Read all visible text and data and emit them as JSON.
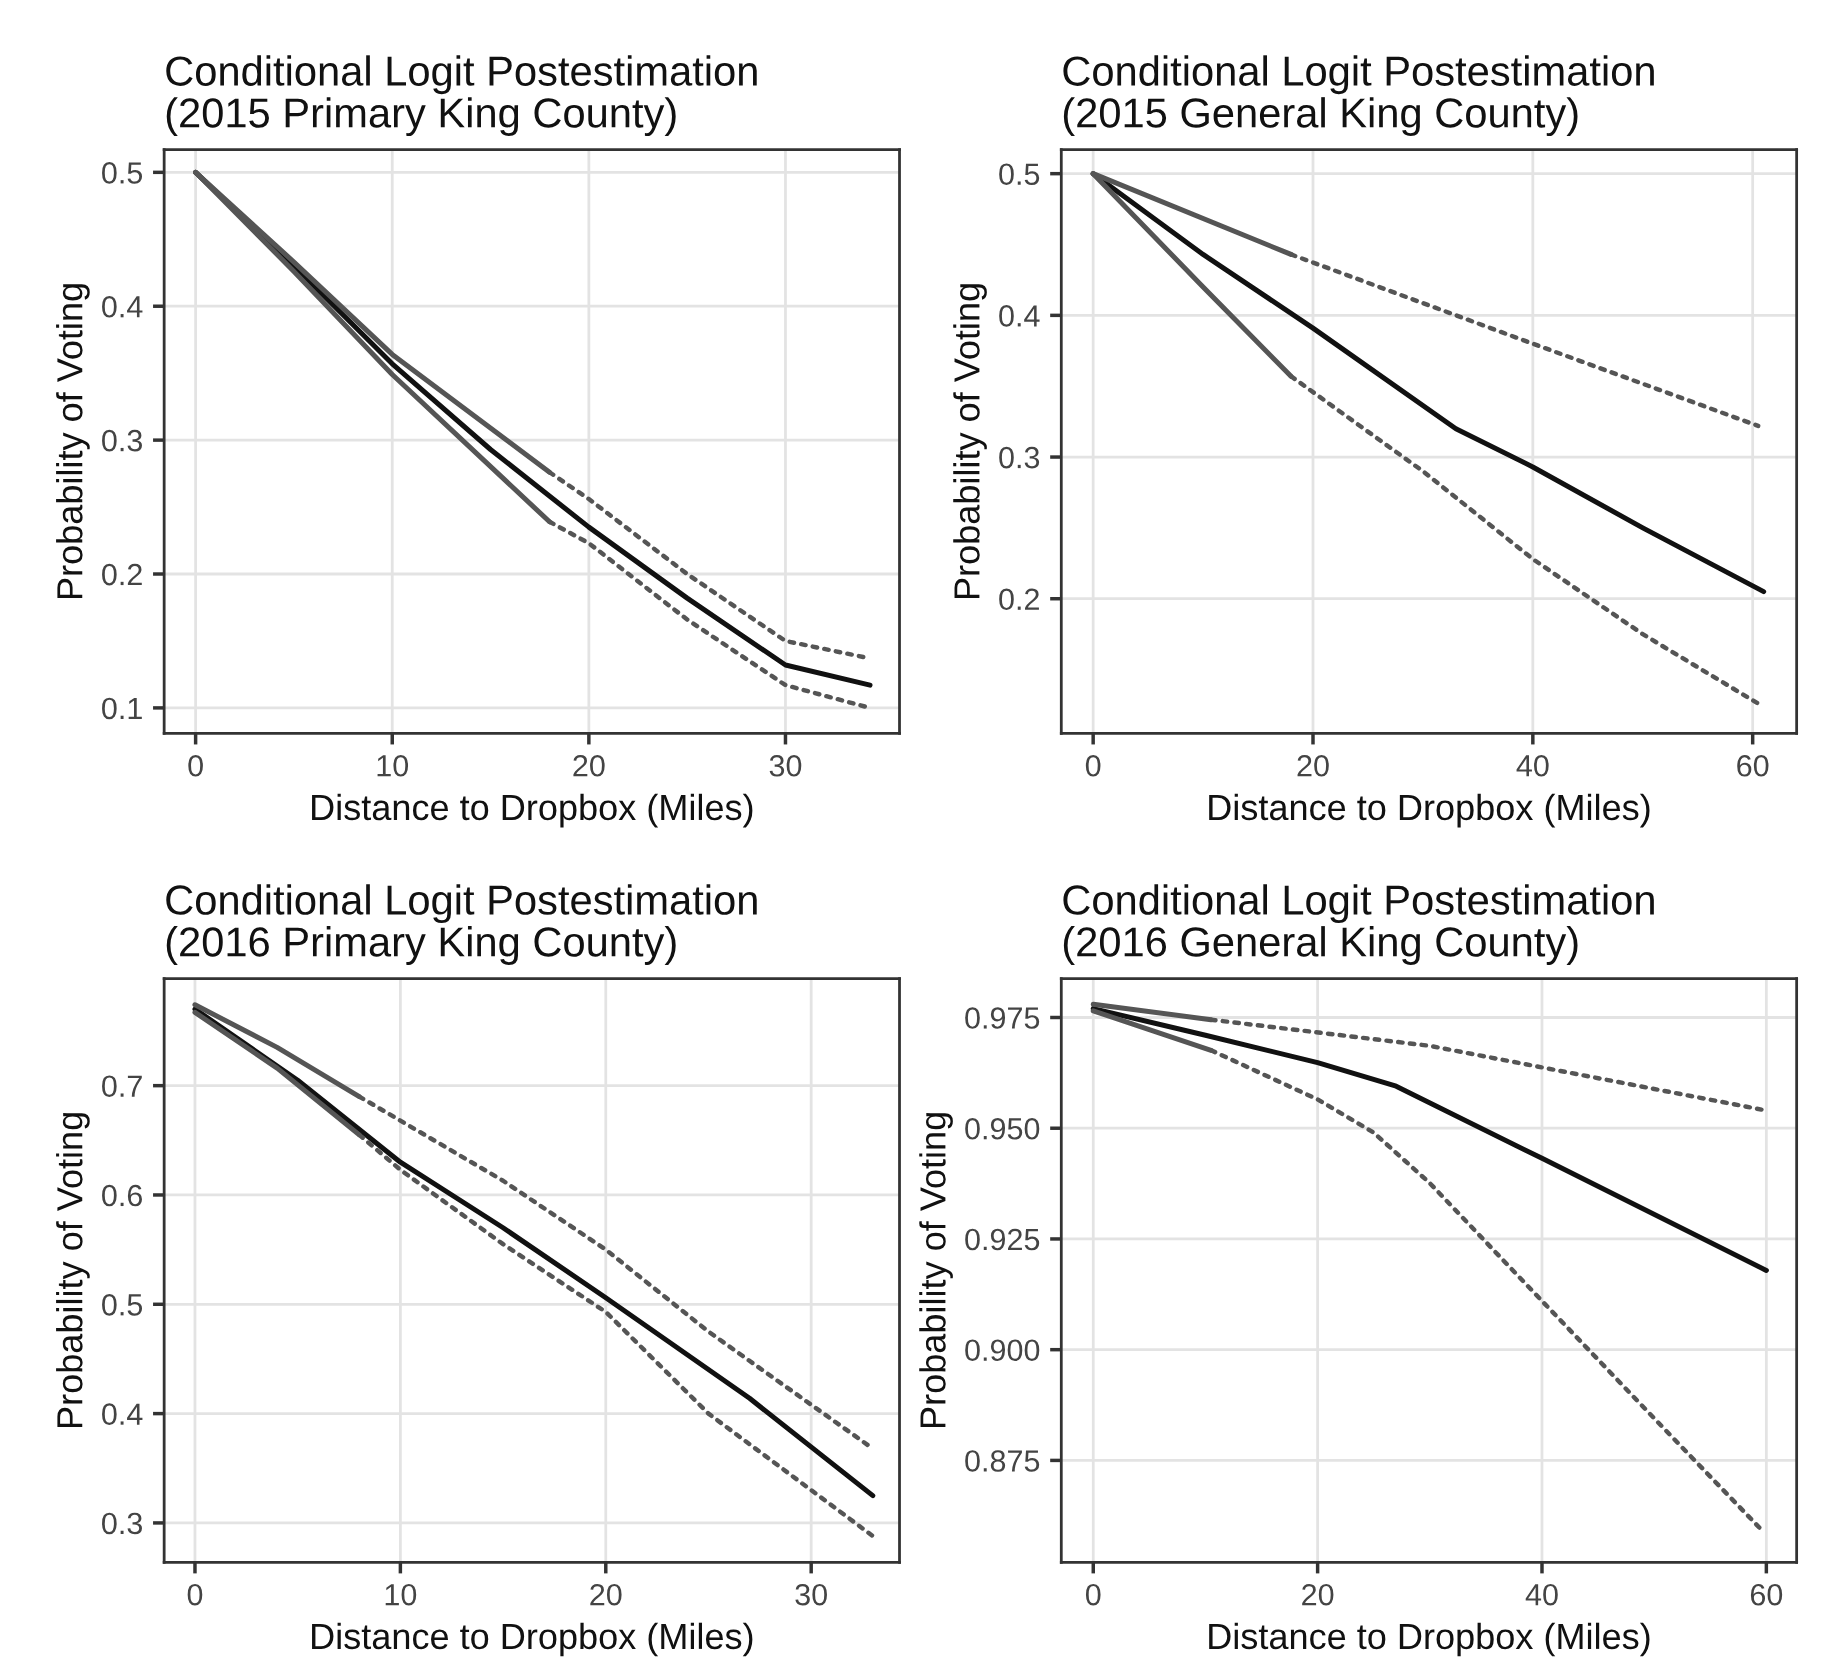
{
  "chart_data": [
    {
      "type": "line",
      "title": "Conditional Logit Postestimation\n(2015 Primary King County)",
      "xlabel": "Distance to Dropbox (Miles)",
      "ylabel": "Probability of Voting",
      "xlim": [
        -1.6,
        35.8
      ],
      "ylim": [
        0.081,
        0.517
      ],
      "xticks": [
        0,
        10,
        20,
        30
      ],
      "yticks": [
        0.1,
        0.2,
        0.3,
        0.4,
        0.5
      ],
      "grid": true,
      "legend": false,
      "series": [
        {
          "color": "#111111",
          "line_style": "solid",
          "x": [
            0,
            5,
            10,
            15,
            20,
            25,
            30,
            34.3
          ],
          "values": [
            0.5,
            0.43,
            0.357,
            0.293,
            0.235,
            0.182,
            0.132,
            0.117
          ]
        },
        {
          "color": "#555555",
          "line_style": "solid",
          "x": [
            0,
            5,
            10,
            18
          ],
          "values": [
            0.5,
            0.433,
            0.364,
            0.276
          ]
        },
        {
          "color": "#555555",
          "line_style": "dotted",
          "x": [
            18,
            20,
            25,
            30,
            34.3
          ],
          "values": [
            0.276,
            0.256,
            0.2,
            0.15,
            0.137
          ]
        },
        {
          "color": "#555555",
          "line_style": "solid",
          "x": [
            0,
            5,
            10,
            18
          ],
          "values": [
            0.5,
            0.426,
            0.349,
            0.239
          ]
        },
        {
          "color": "#555555",
          "line_style": "dotted",
          "x": [
            18,
            20,
            25,
            30,
            34.3
          ],
          "values": [
            0.239,
            0.223,
            0.166,
            0.117,
            0.1
          ]
        }
      ]
    },
    {
      "type": "line",
      "title": "Conditional Logit Postestimation\n(2015 General King County)",
      "xlabel": "Distance to Dropbox (Miles)",
      "ylabel": "Probability of Voting",
      "xlim": [
        -2.9,
        64.0
      ],
      "ylim": [
        0.105,
        0.517
      ],
      "xticks": [
        0,
        20,
        40,
        60
      ],
      "yticks": [
        0.2,
        0.3,
        0.4,
        0.5
      ],
      "grid": true,
      "legend": false,
      "series": [
        {
          "color": "#111111",
          "line_style": "solid",
          "x": [
            0,
            10,
            20,
            33,
            40,
            50,
            61
          ],
          "values": [
            0.5,
            0.443,
            0.391,
            0.32,
            0.293,
            0.25,
            0.205
          ]
        },
        {
          "color": "#555555",
          "line_style": "solid",
          "x": [
            0,
            18
          ],
          "values": [
            0.5,
            0.443
          ]
        },
        {
          "color": "#555555",
          "line_style": "dotted",
          "x": [
            18,
            40,
            60.5
          ],
          "values": [
            0.443,
            0.38,
            0.322
          ]
        },
        {
          "color": "#555555",
          "line_style": "solid",
          "x": [
            0,
            10,
            18
          ],
          "values": [
            0.5,
            0.42,
            0.357
          ]
        },
        {
          "color": "#555555",
          "line_style": "dotted",
          "x": [
            18,
            30,
            40,
            50,
            60.5
          ],
          "values": [
            0.357,
            0.29,
            0.228,
            0.175,
            0.126
          ]
        }
      ]
    },
    {
      "type": "line",
      "title": "Conditional Logit Postestimation\n(2016 Primary King County)",
      "xlabel": "Distance to Dropbox (Miles)",
      "ylabel": "Probability of Voting",
      "xlim": [
        -1.5,
        34.3
      ],
      "ylim": [
        0.264,
        0.798
      ],
      "xticks": [
        0,
        10,
        20,
        30
      ],
      "yticks": [
        0.3,
        0.4,
        0.5,
        0.6,
        0.7
      ],
      "grid": true,
      "legend": false,
      "series": [
        {
          "color": "#111111",
          "line_style": "solid",
          "x": [
            0,
            5,
            10,
            15,
            20,
            27,
            33
          ],
          "values": [
            0.77,
            0.705,
            0.63,
            0.57,
            0.506,
            0.414,
            0.325
          ]
        },
        {
          "color": "#555555",
          "line_style": "solid",
          "x": [
            0,
            4,
            8
          ],
          "values": [
            0.774,
            0.735,
            0.69
          ]
        },
        {
          "color": "#555555",
          "line_style": "dotted",
          "x": [
            8,
            15,
            20,
            25,
            33
          ],
          "values": [
            0.69,
            0.613,
            0.55,
            0.475,
            0.368
          ]
        },
        {
          "color": "#555555",
          "line_style": "solid",
          "x": [
            0,
            4,
            8
          ],
          "values": [
            0.767,
            0.716,
            0.655
          ]
        },
        {
          "color": "#555555",
          "line_style": "dotted",
          "x": [
            8,
            10,
            15,
            20,
            25,
            33
          ],
          "values": [
            0.655,
            0.623,
            0.555,
            0.493,
            0.4,
            0.288
          ]
        }
      ]
    },
    {
      "type": "line",
      "title": "Conditional Logit Postestimation\n(2016 General King County)",
      "xlabel": "Distance to Dropbox (Miles)",
      "ylabel": "Probability of Voting",
      "xlim": [
        -2.85,
        62.7
      ],
      "ylim": [
        0.852,
        0.9838
      ],
      "xticks": [
        0,
        20,
        40,
        60
      ],
      "yticks": [
        {
          "value": 0.875,
          "label": "0.875"
        },
        {
          "value": 0.9,
          "label": "0.900"
        },
        {
          "value": 0.925,
          "label": "0.925"
        },
        {
          "value": 0.95,
          "label": "0.950"
        },
        {
          "value": 0.975,
          "label": "0.975"
        }
      ],
      "grid": true,
      "legend": false,
      "series": [
        {
          "color": "#111111",
          "line_style": "solid",
          "x": [
            0,
            10,
            20,
            27,
            40,
            60
          ],
          "values": [
            0.977,
            0.971,
            0.9648,
            0.9595,
            0.9432,
            0.9179
          ]
        },
        {
          "color": "#555555",
          "line_style": "solid",
          "x": [
            0,
            10.5
          ],
          "values": [
            0.978,
            0.9745
          ]
        },
        {
          "color": "#555555",
          "line_style": "dotted",
          "x": [
            10.5,
            30,
            60
          ],
          "values": [
            0.9745,
            0.9686,
            0.954
          ]
        },
        {
          "color": "#555555",
          "line_style": "solid",
          "x": [
            0,
            10.5
          ],
          "values": [
            0.9765,
            0.9676
          ]
        },
        {
          "color": "#555555",
          "line_style": "dotted",
          "x": [
            10.5,
            20,
            25,
            30,
            40,
            50,
            59.5
          ],
          "values": [
            0.9676,
            0.9565,
            0.949,
            0.9376,
            0.911,
            0.8845,
            0.8595
          ]
        }
      ]
    }
  ]
}
